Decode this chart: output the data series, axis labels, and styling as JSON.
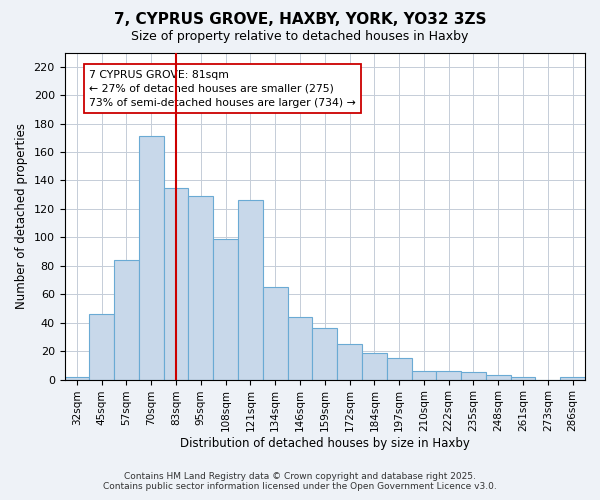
{
  "title": "7, CYPRUS GROVE, HAXBY, YORK, YO32 3ZS",
  "subtitle": "Size of property relative to detached houses in Haxby",
  "xlabel": "Distribution of detached houses by size in Haxby",
  "ylabel": "Number of detached properties",
  "categories": [
    "32sqm",
    "45sqm",
    "57sqm",
    "70sqm",
    "83sqm",
    "95sqm",
    "108sqm",
    "121sqm",
    "134sqm",
    "146sqm",
    "159sqm",
    "172sqm",
    "184sqm",
    "197sqm",
    "210sqm",
    "222sqm",
    "235sqm",
    "248sqm",
    "261sqm",
    "273sqm",
    "286sqm"
  ],
  "values": [
    2,
    46,
    84,
    171,
    135,
    129,
    99,
    126,
    65,
    44,
    36,
    25,
    19,
    15,
    6,
    6,
    5,
    3,
    2,
    0,
    2
  ],
  "bar_color": "#c8d8ea",
  "bar_edge_color": "#6aaad4",
  "vline_x_index": 4,
  "vline_color": "#cc0000",
  "annotation_line1": "7 CYPRUS GROVE: 81sqm",
  "annotation_line2": "← 27% of detached houses are smaller (275)",
  "annotation_line3": "73% of semi-detached houses are larger (734) →",
  "ylim": [
    0,
    230
  ],
  "yticks": [
    0,
    20,
    40,
    60,
    80,
    100,
    120,
    140,
    160,
    180,
    200,
    220
  ],
  "footer_line1": "Contains HM Land Registry data © Crown copyright and database right 2025.",
  "footer_line2": "Contains public sector information licensed under the Open Government Licence v3.0.",
  "bg_color": "#eef2f7",
  "plot_bg_color": "#ffffff",
  "grid_color": "#c5cdd8"
}
